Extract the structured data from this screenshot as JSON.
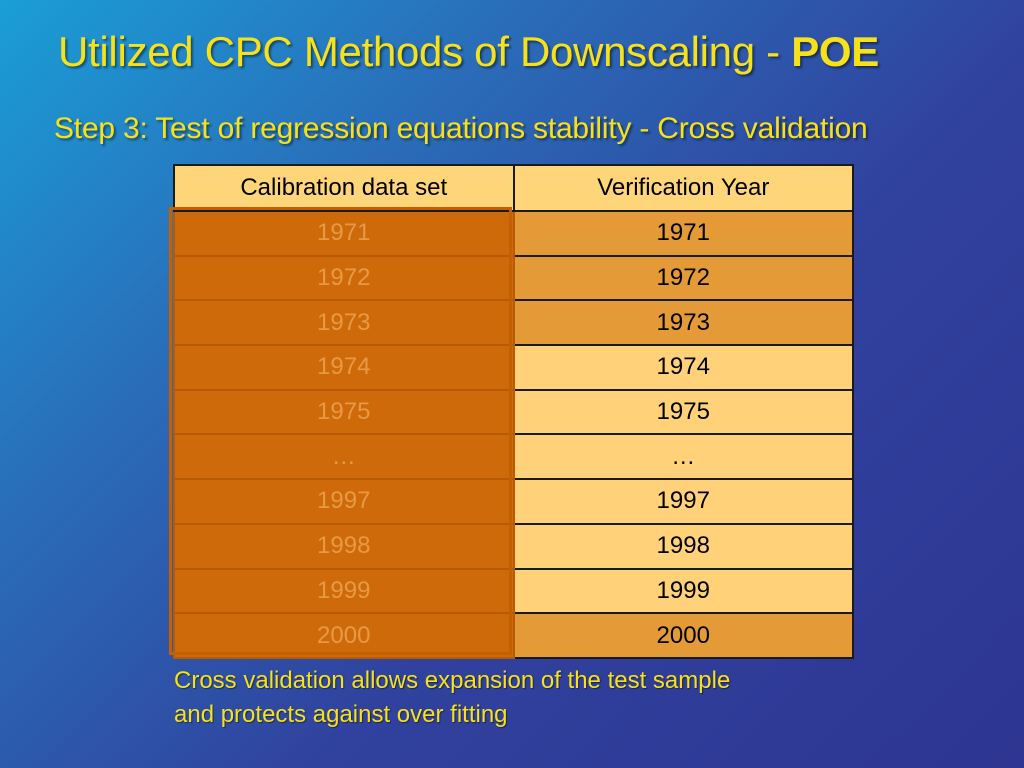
{
  "slide": {
    "title_main": "Utilized CPC Methods of Downscaling - ",
    "title_bold": "POE",
    "subtitle": "Step 3: Test of regression equations stability - Cross validation",
    "caption_line1": "Cross validation allows expansion of the test sample",
    "caption_line2": "and protects against over fitting"
  },
  "table": {
    "headers": [
      "Calibration data set",
      "Verification Year"
    ],
    "rows": [
      {
        "calibration": "1971",
        "verification": "1971"
      },
      {
        "calibration": "1972",
        "verification": "1972"
      },
      {
        "calibration": "1973",
        "verification": "1973"
      },
      {
        "calibration": "1974",
        "verification": "1974"
      },
      {
        "calibration": "1975",
        "verification": "1975"
      },
      {
        "calibration": "…",
        "verification": "…"
      },
      {
        "calibration": "1997",
        "verification": "1997"
      },
      {
        "calibration": "1998",
        "verification": "1998"
      },
      {
        "calibration": "1999",
        "verification": "1999"
      },
      {
        "calibration": "2000",
        "verification": "2000"
      }
    ]
  },
  "colors": {
    "title": "#f7e21a",
    "header_bg": "#ffd57a",
    "calibration_bg": "#cf6a0a",
    "verification_bg": "#ffd27a",
    "verification_highlight_bg": "#e59a38"
  }
}
